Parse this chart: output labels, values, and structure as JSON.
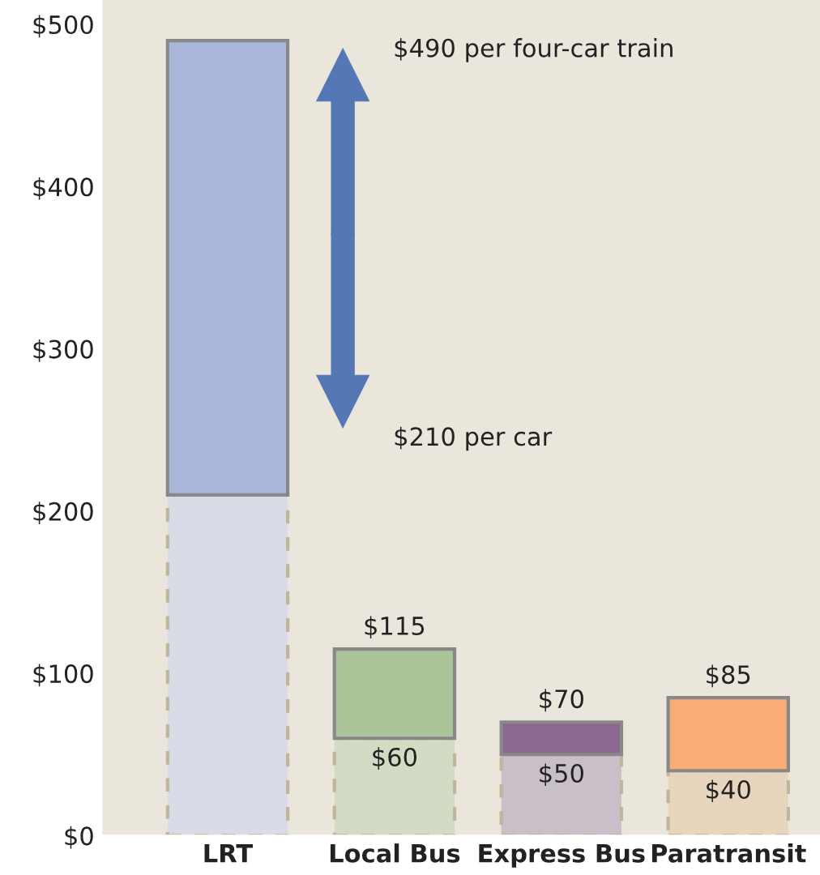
{
  "chart_data": {
    "type": "bar",
    "stacked": true,
    "categories": [
      "LRT",
      "Local Bus",
      "Express Bus",
      "Paratransit"
    ],
    "series": [
      {
        "colors": [
          "#d9dbe6",
          "#d3dbc4",
          "#c9bfc9",
          "#e8d5bd"
        ],
        "line_style": "dashed",
        "values": [
          210,
          60,
          50,
          40
        ],
        "value_labels": [
          null,
          "$60",
          "$50",
          "$40"
        ]
      },
      {
        "colors": [
          "#aab7db",
          "#abc49a",
          "#8b6890",
          "#f7ad74"
        ],
        "line_style": "solid",
        "values": [
          280,
          55,
          20,
          45
        ]
      }
    ],
    "totals": [
      null,
      "$115",
      "$70",
      "$85"
    ],
    "ylim": [
      0,
      515
    ],
    "yticks": [
      {
        "value": 0,
        "label": "$0"
      },
      {
        "value": 100,
        "label": "$100"
      },
      {
        "value": 200,
        "label": "$200"
      },
      {
        "value": 300,
        "label": "$300"
      },
      {
        "value": 400,
        "label": "$400"
      },
      {
        "value": 500,
        "label": "$500"
      }
    ],
    "annotations": [
      "$490 per four-car train",
      "$210 per car"
    ],
    "grid": false,
    "legend": false
  }
}
